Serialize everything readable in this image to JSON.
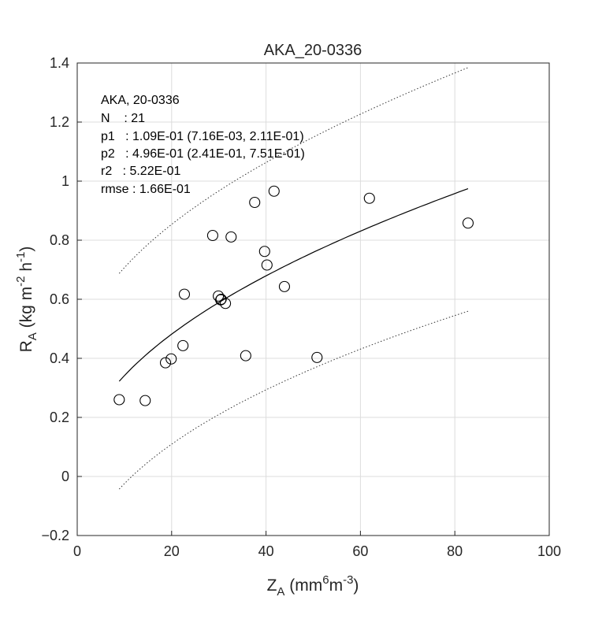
{
  "chart_data": {
    "type": "scatter",
    "title": "AKA_20-0336",
    "xlabel": {
      "main": "Z",
      "sub": "A",
      "unit_pre": " (mm",
      "sup1": "6",
      "unit_mid": "m",
      "sup2": "-3",
      "unit_post": ")"
    },
    "ylabel": {
      "main": "R",
      "sub": "A",
      "unit_pre": " (kg m",
      "sup1": "-2",
      "unit_mid": " h",
      "sup2": "-1",
      "unit_post": ")"
    },
    "xlim": [
      0,
      100
    ],
    "ylim": [
      -0.2,
      1.4
    ],
    "xticks": [
      0,
      20,
      40,
      60,
      80,
      100
    ],
    "yticks": [
      -0.2,
      0,
      0.2,
      0.4,
      0.6,
      0.8,
      1,
      1.2,
      1.4
    ],
    "xtick_labels": [
      "0",
      "20",
      "40",
      "60",
      "80",
      "100"
    ],
    "ytick_labels": [
      "−0.2",
      "0",
      "0.2",
      "0.4",
      "0.6",
      "0.8",
      "1",
      "1.2",
      "1.4"
    ],
    "grid": true,
    "points": [
      {
        "x": 8.9,
        "y": 0.26
      },
      {
        "x": 14.4,
        "y": 0.257
      },
      {
        "x": 18.7,
        "y": 0.385
      },
      {
        "x": 19.9,
        "y": 0.398
      },
      {
        "x": 22.4,
        "y": 0.443
      },
      {
        "x": 22.7,
        "y": 0.617
      },
      {
        "x": 28.7,
        "y": 0.816
      },
      {
        "x": 29.9,
        "y": 0.611
      },
      {
        "x": 30.4,
        "y": 0.598
      },
      {
        "x": 30.5,
        "y": 0.6
      },
      {
        "x": 31.4,
        "y": 0.586
      },
      {
        "x": 32.6,
        "y": 0.811
      },
      {
        "x": 35.7,
        "y": 0.409
      },
      {
        "x": 37.6,
        "y": 0.928
      },
      {
        "x": 39.7,
        "y": 0.762
      },
      {
        "x": 40.2,
        "y": 0.716
      },
      {
        "x": 41.7,
        "y": 0.966
      },
      {
        "x": 43.9,
        "y": 0.643
      },
      {
        "x": 50.8,
        "y": 0.403
      },
      {
        "x": 61.9,
        "y": 0.942
      },
      {
        "x": 82.8,
        "y": 0.858
      }
    ],
    "fit": {
      "model": "y = p1 * x^p2",
      "p1": 0.109,
      "p2": 0.496,
      "x_range": [
        8.9,
        82.8
      ]
    },
    "prediction_band": {
      "upper_offset": [
        0.365,
        0.41
      ],
      "lower_offset": [
        -0.365,
        -0.415
      ]
    },
    "annotation": [
      "AKA, 20-0336",
      "N    : 21",
      "p1   : 1.09E-01 (7.16E-03, 2.11E-01)",
      "p2   : 4.96E-01 (2.41E-01, 7.51E-01)",
      "r2   : 5.22E-01",
      "rmse : 1.66E-01"
    ]
  }
}
